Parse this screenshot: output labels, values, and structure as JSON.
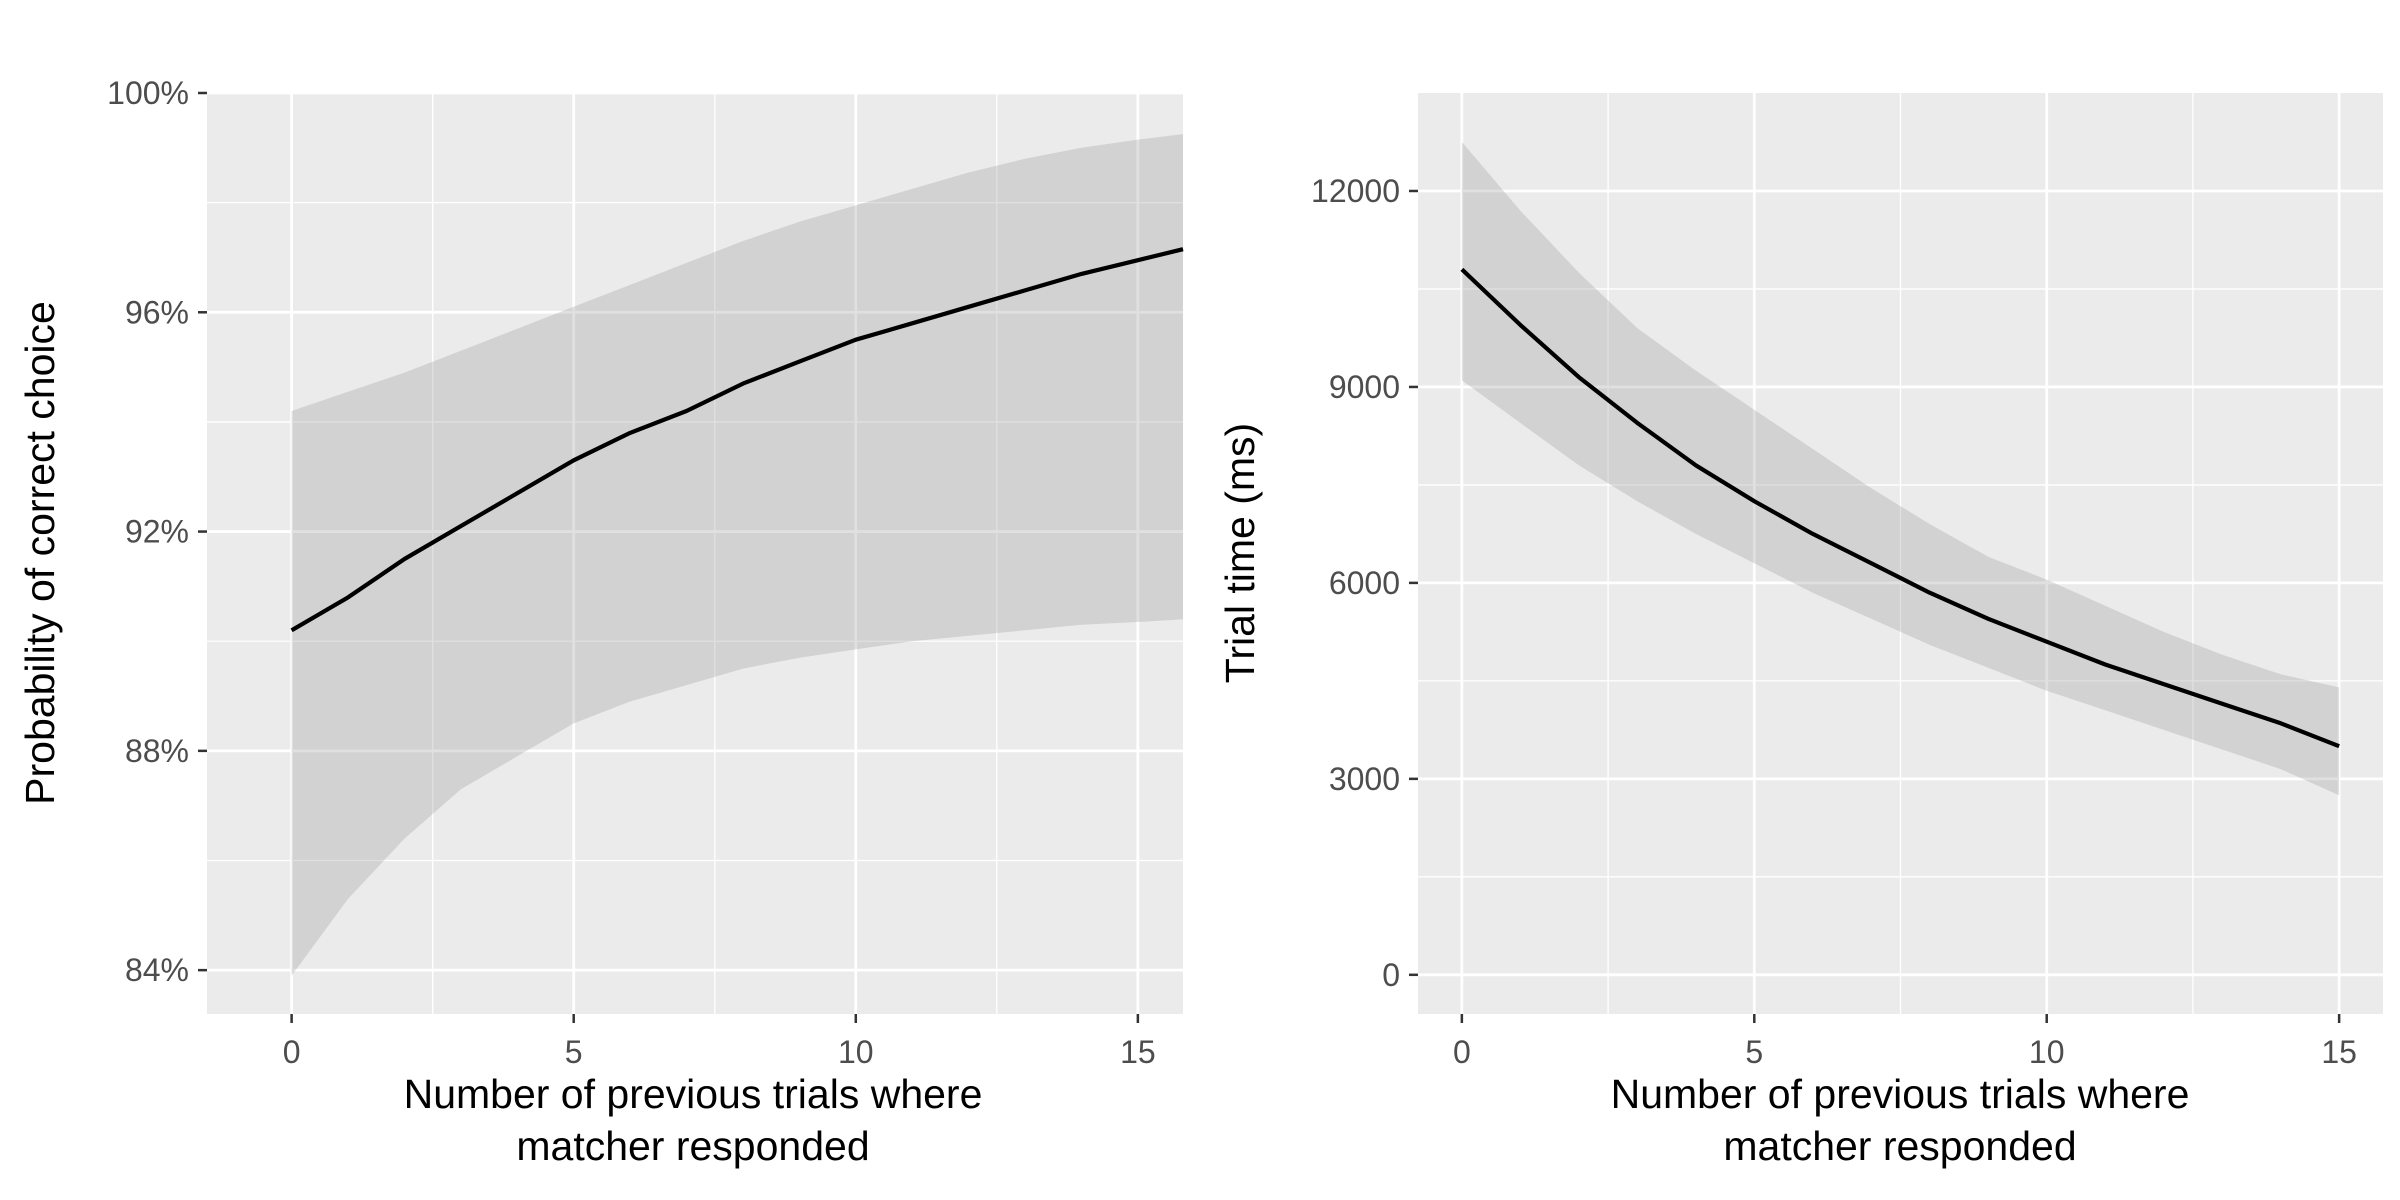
{
  "chart_data": [
    {
      "type": "line",
      "xlabel": "Number of previous trials where matcher responded",
      "xlabel_lines": [
        "Number of previous trials where",
        "matcher responded"
      ],
      "ylabel": "Probability of correct choice",
      "xlim": [
        -1.5,
        15.8
      ],
      "ylim": [
        83.2,
        100
      ],
      "x_ticks": [
        0,
        5,
        10,
        15
      ],
      "x_tick_labels": [
        "0",
        "5",
        "10",
        "15"
      ],
      "y_ticks": [
        84,
        88,
        92,
        96,
        100
      ],
      "y_tick_labels": [
        "84%",
        "88%",
        "92%",
        "96%",
        "100%"
      ],
      "y_unit": "percent",
      "grid": true,
      "legend": "none",
      "series": [
        {
          "x": [
            0,
            1,
            2,
            3,
            4,
            5,
            6,
            7,
            8,
            9,
            10,
            11,
            12,
            13,
            14,
            15,
            15.8
          ],
          "y": [
            90.2,
            90.8,
            91.5,
            92.1,
            92.7,
            93.3,
            93.8,
            94.2,
            94.7,
            95.1,
            95.5,
            95.8,
            96.1,
            96.4,
            96.7,
            96.95,
            97.15
          ],
          "lower": [
            83.9,
            85.3,
            86.4,
            87.3,
            87.9,
            88.5,
            88.9,
            89.2,
            89.5,
            89.7,
            89.85,
            90.0,
            90.1,
            90.2,
            90.3,
            90.35,
            90.4
          ],
          "upper": [
            94.2,
            94.55,
            94.9,
            95.3,
            95.7,
            96.1,
            96.5,
            96.9,
            97.3,
            97.65,
            97.95,
            98.25,
            98.55,
            98.8,
            99.0,
            99.15,
            99.25
          ]
        }
      ]
    },
    {
      "type": "line",
      "xlabel": "Number of previous trials where matcher responded",
      "xlabel_lines": [
        "Number of previous trials where",
        "matcher responded"
      ],
      "ylabel": "Trial time (ms)",
      "xlim": [
        -0.75,
        15.75
      ],
      "ylim": [
        -600,
        13500
      ],
      "x_ticks": [
        0,
        5,
        10,
        15
      ],
      "x_tick_labels": [
        "0",
        "5",
        "10",
        "15"
      ],
      "y_ticks": [
        0,
        3000,
        6000,
        9000,
        12000
      ],
      "y_tick_labels": [
        "0",
        "3000",
        "6000",
        "9000",
        "12000"
      ],
      "grid": true,
      "legend": "none",
      "series": [
        {
          "x": [
            0,
            1,
            2,
            3,
            4,
            5,
            6,
            7,
            8,
            9,
            10,
            11,
            12,
            13,
            14,
            15
          ],
          "y": [
            10800,
            9950,
            9150,
            8450,
            7800,
            7250,
            6750,
            6300,
            5850,
            5450,
            5100,
            4750,
            4450,
            4150,
            3850,
            3500
          ],
          "lower": [
            9100,
            8450,
            7800,
            7250,
            6750,
            6300,
            5850,
            5450,
            5050,
            4700,
            4350,
            4050,
            3750,
            3450,
            3150,
            2750
          ],
          "upper": [
            12750,
            11700,
            10750,
            9900,
            9250,
            8650,
            8050,
            7450,
            6900,
            6400,
            6050,
            5650,
            5250,
            4900,
            4600,
            4400
          ]
        }
      ]
    }
  ]
}
